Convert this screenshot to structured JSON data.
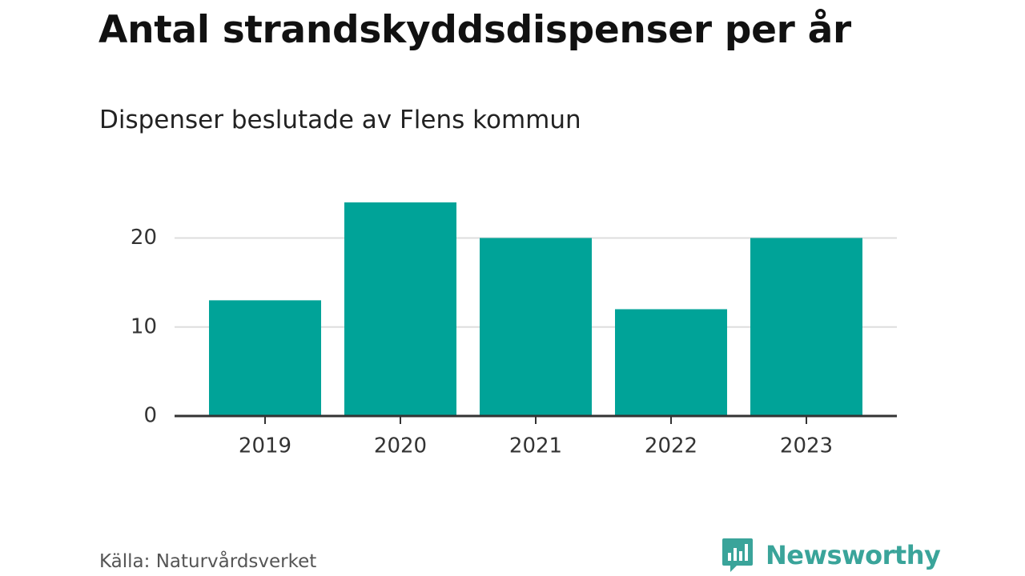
{
  "title": "Antal strandskyddsdispenser per år",
  "subtitle": "Dispenser beslutade av Flens kommun",
  "source": "Källa: Naturvårdsverket",
  "brand": {
    "name": "Newsworthy",
    "color": "#3aa49a"
  },
  "chart_data": {
    "type": "bar",
    "categories": [
      "2019",
      "2020",
      "2021",
      "2022",
      "2023"
    ],
    "values": [
      13,
      24,
      20,
      12,
      20
    ],
    "ylim": [
      0,
      24
    ],
    "yticks": [
      0,
      10,
      20
    ],
    "grid": true,
    "bar_color": "#00a398"
  }
}
